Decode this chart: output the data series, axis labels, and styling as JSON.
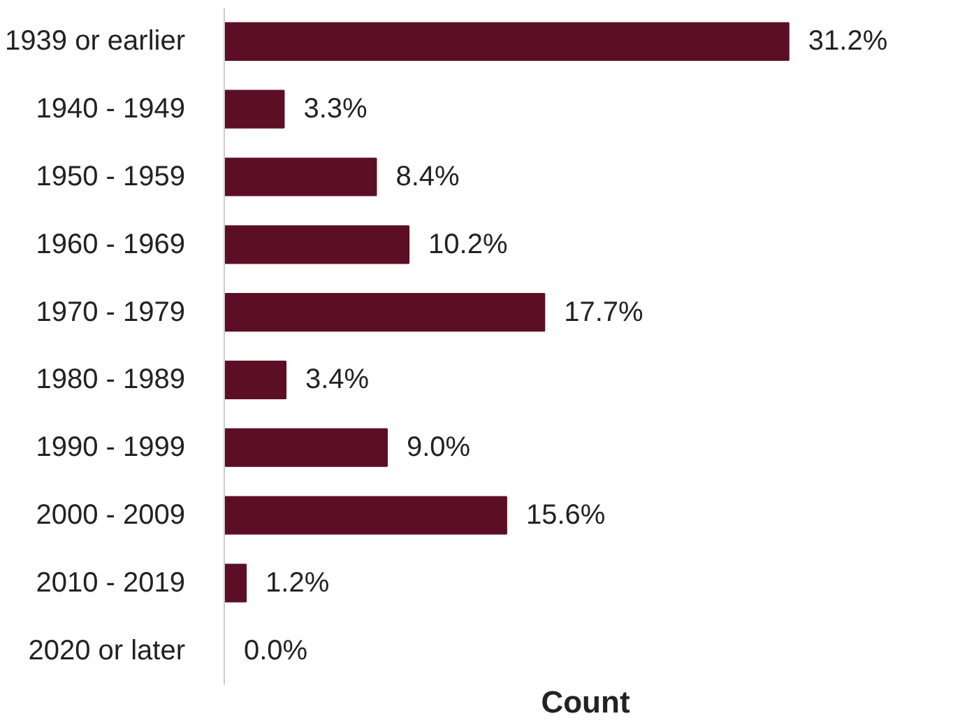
{
  "chart_data": {
    "type": "bar",
    "orientation": "horizontal",
    "xlabel": "Count",
    "categories": [
      "1939 or earlier",
      "1940 - 1949",
      "1950 - 1959",
      "1960 - 1969",
      "1970 - 1979",
      "1980 - 1989",
      "1990 - 1999",
      "2000 - 2009",
      "2010 - 2019",
      "2020 or later"
    ],
    "values": [
      31.2,
      3.3,
      8.4,
      10.2,
      17.7,
      3.4,
      9.0,
      15.6,
      1.2,
      0.0
    ],
    "value_labels": [
      "31.2%",
      "3.3%",
      "8.4%",
      "10.2%",
      "17.7%",
      "3.4%",
      "9.0%",
      "15.6%",
      "1.2%",
      "0.0%"
    ],
    "color": "#5c0f24"
  }
}
